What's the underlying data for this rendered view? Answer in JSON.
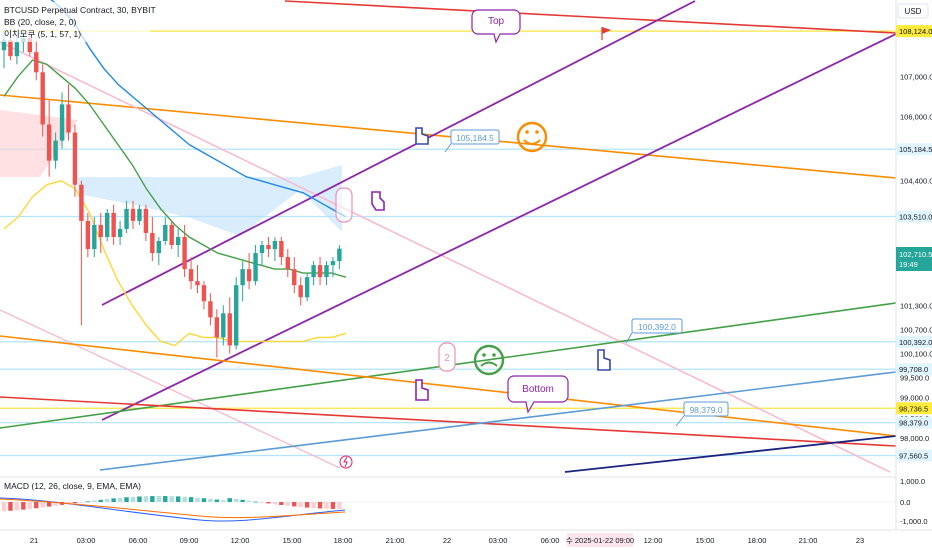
{
  "header": {
    "line1": "BTCUSD Perpetual Contract, 30, BYBIT",
    "line2": "BB (20, close, 2, 0)",
    "line3": "이치모쿠 (5, 1, 57, 1)",
    "macd": "MACD (12, 26, close, 9, EMA, EMA)"
  },
  "currency": "USD",
  "chart_data": {
    "type": "candlestick",
    "price_axis": {
      "range": [
        97200,
        108650
      ],
      "ticks": [
        "107,000.0",
        "106,000.0",
        "104,400.0",
        "103,500.0",
        "101,300.0",
        "100,700.0",
        "100,100.0",
        "99,500.0",
        "99,000.0",
        "98,500.0",
        "98,000.0"
      ],
      "tick_values": [
        107000,
        106000,
        104400,
        103500,
        101300,
        100700,
        100100,
        99500,
        99000,
        98500,
        98000
      ]
    },
    "time_axis": {
      "labels": [
        "21",
        "03:00",
        "06:00",
        "09:00",
        "12:00",
        "15:00",
        "18:00",
        "21:00",
        "22",
        "03:00",
        "06:00",
        "09:00",
        "12:00",
        "15:00",
        "18:00",
        "21:00",
        "23"
      ],
      "crosshair_label": "수 2025-01-22  09:00"
    },
    "horizontal_levels": [
      {
        "value": 108124.0,
        "label": "108,124.0",
        "color": "#f5e642",
        "box": "#ffeb3b"
      },
      {
        "value": 105184.5,
        "label": "105,184.5",
        "color": "#b3e5fc",
        "box": "#e1f5fe"
      },
      {
        "value": 103510.0,
        "label": "103,510.0",
        "color": "#b3e5fc",
        "box": "#e1f5fe"
      },
      {
        "value": 100392.0,
        "label": "100,392.0",
        "color": "#b3e5fc",
        "box": "#e1f5fe"
      },
      {
        "value": 99708.0,
        "label": "99,708.0",
        "color": "#b3e5fc",
        "box": "#e1f5fe"
      },
      {
        "value": 98736.5,
        "label": "98,736.5",
        "color": "#f5e642",
        "box": "#ffeb3b"
      },
      {
        "value": 98379.0,
        "label": "98,379.0",
        "color": "#b3e5fc",
        "box": "#e1f5fe"
      },
      {
        "value": 97560.5,
        "label": "97,560.5",
        "color": "#b3e5fc",
        "box": "#e1f5fe"
      }
    ],
    "current_price": {
      "label": "102,710.5",
      "countdown": "19:49",
      "value": 102710.5
    },
    "annotations": [
      {
        "text": "Top"
      },
      {
        "text": "Bottom"
      },
      {
        "text": "105,184.5"
      },
      {
        "text": "100,392.0"
      },
      {
        "text": "98,379.0"
      },
      {
        "text": "2"
      }
    ],
    "candles": [
      {
        "o": 107650,
        "h": 108200,
        "l": 107200,
        "c": 107900
      },
      {
        "o": 107900,
        "h": 108124,
        "l": 107400,
        "c": 107500
      },
      {
        "o": 107500,
        "h": 108000,
        "l": 107300,
        "c": 107850
      },
      {
        "o": 107850,
        "h": 108124,
        "l": 107600,
        "c": 107950
      },
      {
        "o": 107950,
        "h": 108124,
        "l": 107500,
        "c": 107600
      },
      {
        "o": 107600,
        "h": 107900,
        "l": 106900,
        "c": 107100
      },
      {
        "o": 107100,
        "h": 107300,
        "l": 105500,
        "c": 105800
      },
      {
        "o": 105800,
        "h": 106400,
        "l": 104500,
        "c": 104900
      },
      {
        "o": 104900,
        "h": 105600,
        "l": 104700,
        "c": 105400
      },
      {
        "o": 105400,
        "h": 106600,
        "l": 105200,
        "c": 106300
      },
      {
        "o": 106300,
        "h": 106800,
        "l": 105400,
        "c": 105600
      },
      {
        "o": 105600,
        "h": 105800,
        "l": 104000,
        "c": 104300
      },
      {
        "o": 104300,
        "h": 104400,
        "l": 100800,
        "c": 103400
      },
      {
        "o": 103400,
        "h": 103600,
        "l": 102500,
        "c": 102700
      },
      {
        "o": 102700,
        "h": 103500,
        "l": 102500,
        "c": 103300
      },
      {
        "o": 103300,
        "h": 103600,
        "l": 102600,
        "c": 103000
      },
      {
        "o": 103000,
        "h": 103700,
        "l": 102900,
        "c": 103600
      },
      {
        "o": 103600,
        "h": 103800,
        "l": 102800,
        "c": 103000
      },
      {
        "o": 103000,
        "h": 103400,
        "l": 102800,
        "c": 103200
      },
      {
        "o": 103200,
        "h": 103900,
        "l": 103100,
        "c": 103700
      },
      {
        "o": 103700,
        "h": 103900,
        "l": 103200,
        "c": 103400
      },
      {
        "o": 103400,
        "h": 103800,
        "l": 103300,
        "c": 103700
      },
      {
        "o": 103700,
        "h": 103800,
        "l": 102900,
        "c": 103100
      },
      {
        "o": 103100,
        "h": 103500,
        "l": 102400,
        "c": 102600
      },
      {
        "o": 102600,
        "h": 103000,
        "l": 102300,
        "c": 102900
      },
      {
        "o": 102900,
        "h": 103500,
        "l": 102800,
        "c": 103300
      },
      {
        "o": 103300,
        "h": 103400,
        "l": 102700,
        "c": 102800
      },
      {
        "o": 102800,
        "h": 103200,
        "l": 102500,
        "c": 103000
      },
      {
        "o": 103000,
        "h": 103300,
        "l": 102000,
        "c": 102200
      },
      {
        "o": 102200,
        "h": 102500,
        "l": 101700,
        "c": 101900
      },
      {
        "o": 101900,
        "h": 102300,
        "l": 101600,
        "c": 101800
      },
      {
        "o": 101800,
        "h": 101900,
        "l": 101200,
        "c": 101400
      },
      {
        "o": 101400,
        "h": 101600,
        "l": 100800,
        "c": 101000
      },
      {
        "o": 101000,
        "h": 101200,
        "l": 100000,
        "c": 100500
      },
      {
        "o": 100500,
        "h": 101300,
        "l": 100300,
        "c": 101100
      },
      {
        "o": 101100,
        "h": 101500,
        "l": 100100,
        "c": 100300
      },
      {
        "o": 100300,
        "h": 102000,
        "l": 100200,
        "c": 101800
      },
      {
        "o": 101800,
        "h": 102400,
        "l": 101400,
        "c": 102200
      },
      {
        "o": 102200,
        "h": 102600,
        "l": 101700,
        "c": 101900
      },
      {
        "o": 101900,
        "h": 102800,
        "l": 101800,
        "c": 102600
      },
      {
        "o": 102600,
        "h": 102900,
        "l": 102300,
        "c": 102800
      },
      {
        "o": 102800,
        "h": 103000,
        "l": 102500,
        "c": 102700
      },
      {
        "o": 102700,
        "h": 103000,
        "l": 102400,
        "c": 102900
      },
      {
        "o": 102900,
        "h": 103000,
        "l": 102300,
        "c": 102500
      },
      {
        "o": 102500,
        "h": 102700,
        "l": 102000,
        "c": 102200
      },
      {
        "o": 102200,
        "h": 102500,
        "l": 101600,
        "c": 101800
      },
      {
        "o": 101800,
        "h": 102000,
        "l": 101300,
        "c": 101500
      },
      {
        "o": 101500,
        "h": 102100,
        "l": 101400,
        "c": 102000
      },
      {
        "o": 102000,
        "h": 102400,
        "l": 101800,
        "c": 102300
      },
      {
        "o": 102300,
        "h": 102500,
        "l": 101800,
        "c": 102000
      },
      {
        "o": 102000,
        "h": 102400,
        "l": 101800,
        "c": 102300
      },
      {
        "o": 102300,
        "h": 102500,
        "l": 102000,
        "c": 102400
      },
      {
        "o": 102400,
        "h": 102800,
        "l": 102200,
        "c": 102710
      }
    ],
    "bb_upper": [
      109800,
      109600,
      109300,
      109000,
      108700,
      108300,
      107700,
      107200,
      106800,
      106500,
      106200,
      105900,
      105600,
      105300,
      105100,
      104900,
      104700,
      104500,
      104400,
      104300,
      104200,
      104100,
      103900,
      103700,
      103500
    ],
    "bb_basis": [
      106500,
      107000,
      107400,
      107300,
      107000,
      106700,
      106300,
      105800,
      105300,
      104800,
      104200,
      103700,
      103300,
      103000,
      102800,
      102600,
      102500,
      102400,
      102300,
      102200,
      102200,
      102100,
      102100,
      102100,
      102000
    ],
    "bb_lower": [
      103200,
      103500,
      104000,
      104300,
      104400,
      104200,
      103600,
      102700,
      101900,
      101300,
      100800,
      100400,
      100300,
      100600,
      100500,
      100500,
      100400,
      100400,
      100400,
      100400,
      100400,
      100400,
      100500,
      100500,
      100600
    ],
    "trend_lines": [
      {
        "name": "purple-upper",
        "color": "#8e24aa"
      },
      {
        "name": "purple-lower",
        "color": "#8e24aa"
      },
      {
        "name": "red-top",
        "color": "#e53935"
      },
      {
        "name": "orange-upper",
        "color": "#fb8c00"
      },
      {
        "name": "pink-upper",
        "color": "#f8bbd0"
      },
      {
        "name": "green-rising",
        "color": "#43a047"
      },
      {
        "name": "orange-lower",
        "color": "#fb8c00"
      },
      {
        "name": "red-lower",
        "color": "#e53935"
      },
      {
        "name": "blue-rising",
        "color": "#5b9bd5"
      },
      {
        "name": "navy-rising",
        "color": "#1a237e"
      }
    ],
    "macd_axis": {
      "ticks": [
        "1,000.0",
        "0.0",
        "-1,000.0"
      ]
    }
  }
}
